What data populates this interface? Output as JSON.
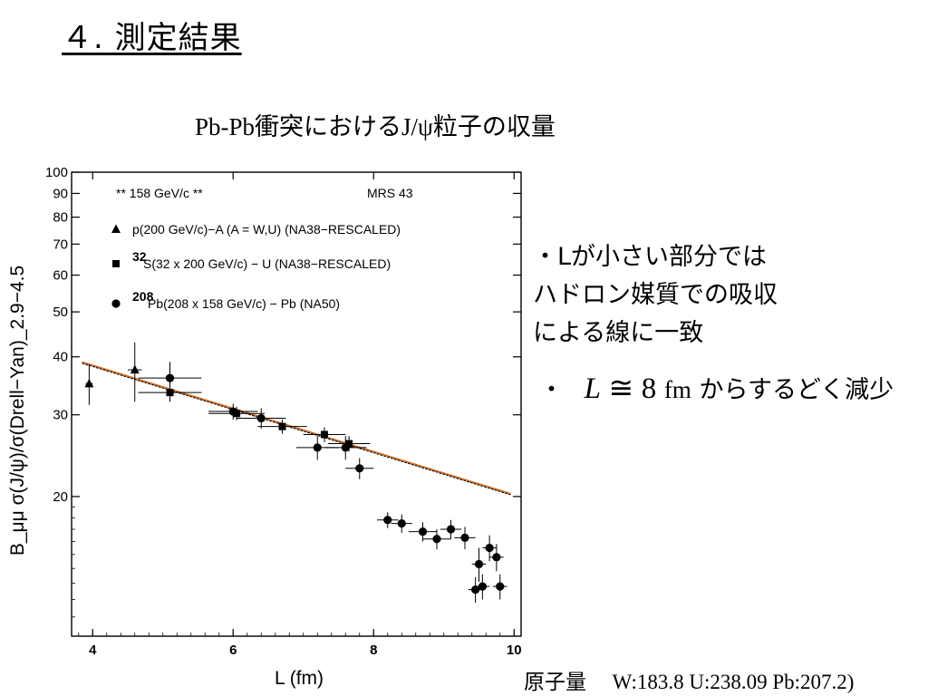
{
  "slide": {
    "title": "４. 測定結果",
    "chart_heading": "Pb-Pb衝突におけるJ/ψ粒子の収量",
    "bullet1_lines": [
      "・Lが小さい部分では",
      "ハドロン媒質での吸収",
      "による線に一致"
    ],
    "bullet2": {
      "marker": "・",
      "symbol": "L",
      "relation": "≅",
      "value": "8",
      "unit": "fm",
      "text": "からするどく減少"
    },
    "footer": {
      "label": "原子量",
      "values": "W:183.8  U:238.09 Pb:207.2)"
    }
  },
  "chart_data": {
    "type": "scatter",
    "xlabel": "L (fm)",
    "ylabel": "B_μμ σ(J/ψ)/σ(Drell−Yan)_2.9−4.5",
    "xlim": [
      3.7,
      10.1
    ],
    "ylim": [
      10,
      100
    ],
    "yscale": "log",
    "x_ticks": [
      4,
      6,
      8,
      10
    ],
    "y_ticks": [
      20,
      30,
      40,
      50,
      60,
      70,
      80,
      90,
      100
    ],
    "header_left": "** 158 GeV/c **",
    "header_right": "MRS 43",
    "grid": false,
    "legend_position": "top-left",
    "series": [
      {
        "name": "p(200 GeV/c)−A (A = W,U) (NA38−RESCALED)",
        "marker": "triangle",
        "points": [
          {
            "x": 3.95,
            "y": 35,
            "ye": 3.5,
            "xe": 0.05
          },
          {
            "x": 4.6,
            "y": 37.5,
            "ye": 5.5,
            "xe": 0.1
          }
        ]
      },
      {
        "name": "S(32 x 200 GeV/c) − U (NA38−RESCALED)",
        "legend_sup": "32",
        "marker": "square",
        "points": [
          {
            "x": 5.1,
            "y": 33.5,
            "ye": 1.5,
            "xe": 0.45
          },
          {
            "x": 6.05,
            "y": 30.2,
            "ye": 1.0,
            "xe": 0.4
          },
          {
            "x": 6.7,
            "y": 28.3,
            "ye": 1.0,
            "xe": 0.35
          },
          {
            "x": 7.3,
            "y": 27.2,
            "ye": 1.0,
            "xe": 0.3
          },
          {
            "x": 7.65,
            "y": 26.0,
            "ye": 1.0,
            "xe": 0.3
          }
        ]
      },
      {
        "name": "Pb(208 x 158 GeV/c) − Pb (NA50)",
        "legend_sup": "208",
        "marker": "circle",
        "points": [
          {
            "x": 5.1,
            "y": 36.0,
            "ye": 3.0,
            "xe": 0.45
          },
          {
            "x": 6.0,
            "y": 30.5,
            "ye": 1.2,
            "xe": 0.35
          },
          {
            "x": 6.4,
            "y": 29.5,
            "ye": 1.5,
            "xe": 0.35
          },
          {
            "x": 7.2,
            "y": 25.5,
            "ye": 1.5,
            "xe": 0.3
          },
          {
            "x": 7.6,
            "y": 25.5,
            "ye": 1.5,
            "xe": 0.3
          },
          {
            "x": 7.8,
            "y": 23.0,
            "ye": 1.2,
            "xe": 0.2
          },
          {
            "x": 8.2,
            "y": 17.8,
            "ye": 0.7,
            "xe": 0.15
          },
          {
            "x": 8.4,
            "y": 17.5,
            "ye": 0.8,
            "xe": 0.15
          },
          {
            "x": 8.7,
            "y": 16.8,
            "ye": 0.8,
            "xe": 0.2
          },
          {
            "x": 8.9,
            "y": 16.2,
            "ye": 0.8,
            "xe": 0.2
          },
          {
            "x": 9.1,
            "y": 17.0,
            "ye": 0.8,
            "xe": 0.15
          },
          {
            "x": 9.3,
            "y": 16.3,
            "ye": 0.9,
            "xe": 0.15
          },
          {
            "x": 9.5,
            "y": 14.3,
            "ye": 1.2,
            "xe": 0.1
          },
          {
            "x": 9.65,
            "y": 15.5,
            "ye": 1.0,
            "xe": 0.1
          },
          {
            "x": 9.75,
            "y": 14.8,
            "ye": 1.0,
            "xe": 0.1
          },
          {
            "x": 9.8,
            "y": 12.8,
            "ye": 0.8,
            "xe": 0.1
          },
          {
            "x": 9.55,
            "y": 12.8,
            "ye": 0.8,
            "xe": 0.1
          },
          {
            "x": 9.45,
            "y": 12.6,
            "ye": 0.8,
            "xe": 0.1
          }
        ]
      }
    ],
    "fit_line": {
      "x": [
        3.85,
        9.95
      ],
      "y": [
        38.8,
        20.2
      ],
      "color": "#d2691e"
    }
  }
}
